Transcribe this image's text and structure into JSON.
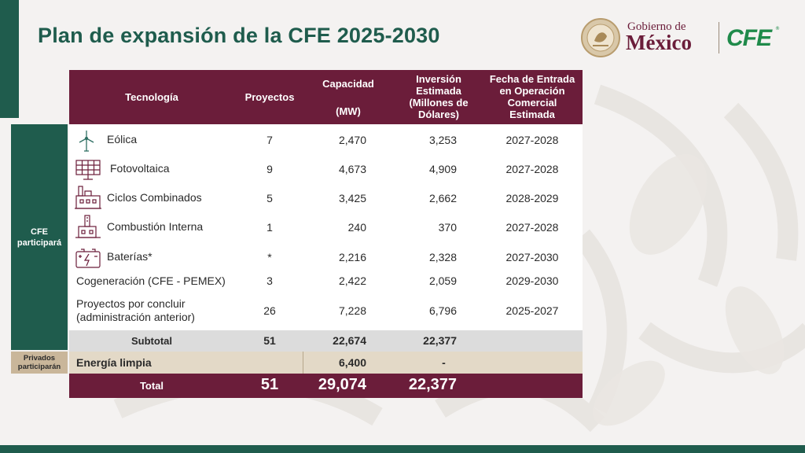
{
  "title": "Plan de expansión de la CFE 2025-2030",
  "logos": {
    "gobierno_line1": "Gobierno de",
    "gobierno_line2": "México",
    "cfe": "CFE",
    "cfe_reg": "®"
  },
  "colors": {
    "green": "#1f5c4d",
    "maroon": "#6b1d3a",
    "beige": "#c9b69a",
    "cfe_green": "#1f8a4a"
  },
  "table": {
    "headers": {
      "tecnologia": "Tecnología",
      "proyectos": "Proyectos",
      "capacidad": "Capacidad",
      "capacidad_unit": "(MW)",
      "inversion": [
        "Inversión",
        "Estimada",
        "(Millones de",
        "Dólares)"
      ],
      "fecha": [
        "Fecha de Entrada",
        "en Operación",
        "Comercial",
        "Estimada"
      ]
    },
    "group_cfe": [
      "CFE",
      "participará"
    ],
    "group_privados": [
      "Privados",
      "participarán"
    ],
    "rows": [
      {
        "icon": "wind-turbine-icon",
        "name": "Eólica",
        "proyectos": "7",
        "capacidad": "2,470",
        "inversion": "3,253",
        "fecha": "2027-2028"
      },
      {
        "icon": "solar-panel-icon",
        "name": "Fotovoltaica",
        "proyectos": "9",
        "capacidad": "4,673",
        "inversion": "4,909",
        "fecha": "2027-2028"
      },
      {
        "icon": "power-plant-icon",
        "name": "Ciclos Combinados",
        "proyectos": "5",
        "capacidad": "3,425",
        "inversion": "2,662",
        "fecha": "2028-2029"
      },
      {
        "icon": "factory-icon",
        "name": "Combustión Interna",
        "proyectos": "1",
        "capacidad": "240",
        "inversion": "370",
        "fecha": "2027-2028"
      },
      {
        "icon": "battery-icon",
        "name": "Baterías*",
        "proyectos": "*",
        "capacidad": "2,216",
        "inversion": "2,328",
        "fecha": "2027-2030"
      },
      {
        "icon": "",
        "name": "Cogeneración (CFE - PEMEX)",
        "proyectos": "3",
        "capacidad": "2,422",
        "inversion": "2,059",
        "fecha": "2029-2030"
      },
      {
        "icon": "",
        "name": [
          "Proyectos por concluir",
          "(administración anterior)"
        ],
        "proyectos": "26",
        "capacidad": "7,228",
        "inversion": "6,796",
        "fecha": "2025-2027"
      }
    ],
    "subtotal": {
      "label": "Subtotal",
      "proyectos": "51",
      "capacidad": "22,674",
      "inversion": "22,377"
    },
    "energia_limpia": {
      "label": "Energía limpia",
      "capacidad": "6,400",
      "inversion": "-"
    },
    "total": {
      "label": "Total",
      "proyectos": "51",
      "capacidad": "29,074",
      "inversion": "22,377"
    }
  }
}
